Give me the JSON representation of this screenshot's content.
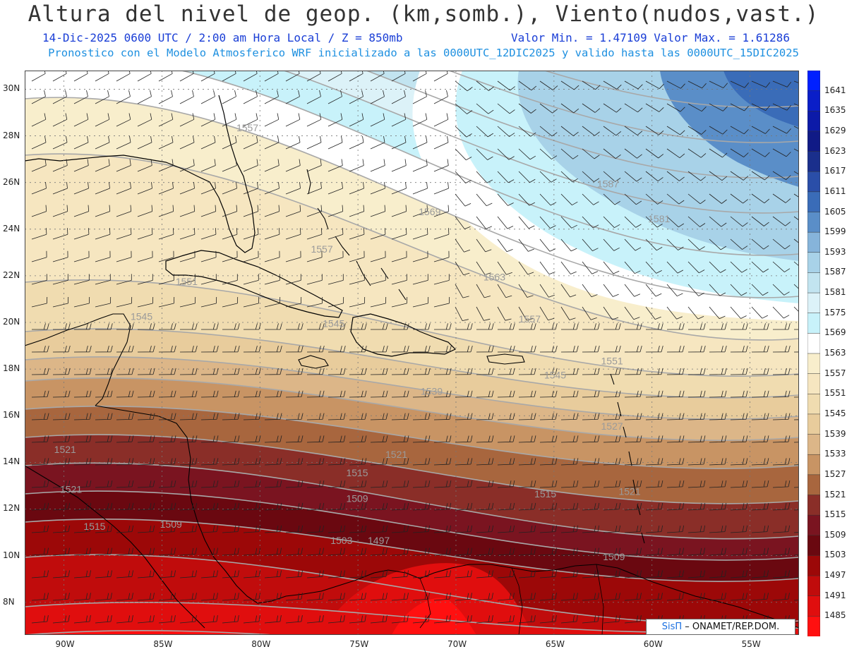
{
  "header": {
    "title": "Altura del nivel de geop. (km,somb.), Viento(nudos,vast.)",
    "date_line": "14-Dic-2025   0600 UTC / 2:00 am Hora Local / Z = 850mb",
    "minmax_line": "Valor Min. = 1.47109  Valor Max. = 1.61286",
    "model_line": "Pronostico con el Modelo Atmosferico WRF inicializado a las 0000UTC_12DIC2025 y valido hasta las  0000UTC_15DIC2025"
  },
  "map": {
    "lon_range": [
      -92,
      -52.5
    ],
    "lat_range": [
      6.6,
      30.8
    ],
    "lat_ticks": [
      "30N",
      "28N",
      "26N",
      "24N",
      "22N",
      "20N",
      "18N",
      "16N",
      "14N",
      "12N",
      "10N",
      "8N"
    ],
    "lon_ticks": [
      "90W",
      "85W",
      "80W",
      "75W",
      "70W",
      "65W",
      "60W",
      "55W"
    ],
    "contour_labels": [
      {
        "text": "1557",
        "lon": -81.2,
        "lat": 28.2
      },
      {
        "text": "1557",
        "lon": -77.4,
        "lat": 23.0
      },
      {
        "text": "1551",
        "lon": -84.3,
        "lat": 21.6
      },
      {
        "text": "1545",
        "lon": -86.6,
        "lat": 20.1
      },
      {
        "text": "1545",
        "lon": -76.8,
        "lat": 19.8
      },
      {
        "text": "1569",
        "lon": -71.9,
        "lat": 24.6
      },
      {
        "text": "1563",
        "lon": -68.6,
        "lat": 21.8
      },
      {
        "text": "1557",
        "lon": -66.8,
        "lat": 20.0
      },
      {
        "text": "1587",
        "lon": -62.8,
        "lat": 25.8
      },
      {
        "text": "1581",
        "lon": -60.2,
        "lat": 24.3
      },
      {
        "text": "1551",
        "lon": -62.6,
        "lat": 18.2
      },
      {
        "text": "1545",
        "lon": -65.5,
        "lat": 17.6
      },
      {
        "text": "1539",
        "lon": -71.8,
        "lat": 16.9
      },
      {
        "text": "1527",
        "lon": -62.6,
        "lat": 15.4
      },
      {
        "text": "1521",
        "lon": -73.6,
        "lat": 14.2
      },
      {
        "text": "1521",
        "lon": -90.5,
        "lat": 14.4
      },
      {
        "text": "1521",
        "lon": -90.2,
        "lat": 12.7
      },
      {
        "text": "1515",
        "lon": -75.6,
        "lat": 13.4
      },
      {
        "text": "1515",
        "lon": -89.0,
        "lat": 11.1
      },
      {
        "text": "1509",
        "lon": -75.6,
        "lat": 12.3
      },
      {
        "text": "1509",
        "lon": -85.1,
        "lat": 11.2
      },
      {
        "text": "1515",
        "lon": -66.0,
        "lat": 12.5
      },
      {
        "text": "1521",
        "lon": -61.7,
        "lat": 12.6
      },
      {
        "text": "1503",
        "lon": -76.4,
        "lat": 10.5
      },
      {
        "text": "1497",
        "lon": -74.5,
        "lat": 10.5
      },
      {
        "text": "1509",
        "lon": -62.5,
        "lat": 9.8
      }
    ]
  },
  "colorbar": {
    "levels": [
      "1641",
      "1635",
      "1629",
      "1623",
      "1617",
      "1611",
      "1605",
      "1599",
      "1593",
      "1587",
      "1581",
      "1575",
      "1569",
      "1563",
      "1557",
      "1551",
      "1545",
      "1539",
      "1533",
      "1527",
      "1521",
      "1515",
      "1509",
      "1503",
      "1497",
      "1491",
      "1485"
    ],
    "colors": [
      "#0020ff",
      "#0a1ec8",
      "#0c1aa8",
      "#101a86",
      "#1a2f8c",
      "#2a4ea8",
      "#3a6cb8",
      "#5a8ec8",
      "#86b4da",
      "#a8d2e8",
      "#c2e4f0",
      "#dcf2f8",
      "#c8f2fa",
      "#ffffff",
      "#f8eecc",
      "#f6e6c0",
      "#f0dcb0",
      "#e8cc9c",
      "#dcb688",
      "#c89464",
      "#a8663e",
      "#8a2e28",
      "#7a1420",
      "#6a0810",
      "#9c0808",
      "#c00c0c",
      "#e00e0e",
      "#ff1010"
    ]
  },
  "credit": {
    "brand": "SisΠ",
    "org": " – ONAMET/REP.DOM."
  }
}
